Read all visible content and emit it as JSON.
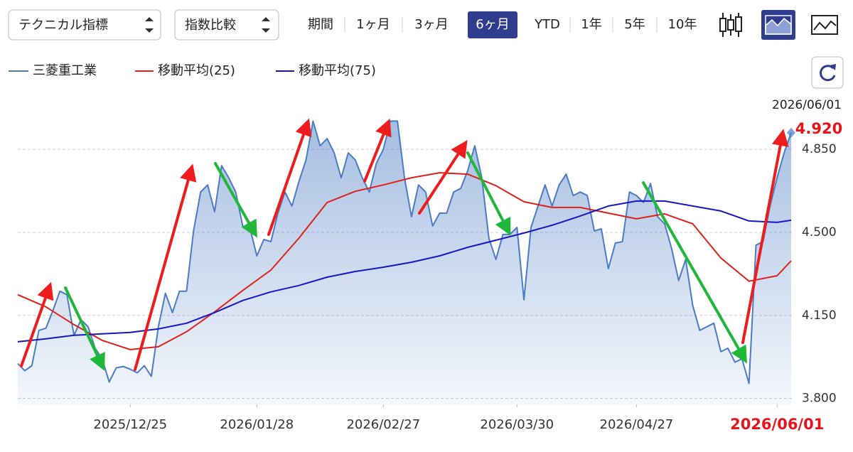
{
  "ui": {
    "indicator_select": "テクニカル指標",
    "compare_select": "指数比較",
    "period_label": "期間",
    "periods": [
      "1ヶ月",
      "3ヶ月",
      "6ヶ月",
      "YTD",
      "1年",
      "5年",
      "10年"
    ]
  },
  "chart_data": {
    "type": "line",
    "xlim": [
      0,
      110
    ],
    "xticks": [
      {
        "value": 16,
        "label": "2025/12/25"
      },
      {
        "value": 34,
        "label": "2026/01/28"
      },
      {
        "value": 52,
        "label": "2026/02/27"
      },
      {
        "value": 71,
        "label": "2026/03/30"
      },
      {
        "value": 88,
        "label": "2026/04/27"
      },
      {
        "value": 108,
        "label": "2026/06/01"
      }
    ],
    "ylim": [
      3.775,
      5.0
    ],
    "yticks": [
      {
        "value": 3.8,
        "label": "3.800"
      },
      {
        "value": 4.15,
        "label": "4.150"
      },
      {
        "value": 4.5,
        "label": "4.500"
      },
      {
        "value": 4.85,
        "label": "4.850"
      }
    ],
    "grid": true,
    "series": [
      {
        "name": "三菱重工業",
        "color": "#4a7cc4",
        "area": true,
        "values": [
          3.947,
          3.917,
          3.938,
          4.087,
          4.096,
          4.171,
          4.252,
          4.237,
          4.066,
          4.132,
          4.102,
          4.012,
          3.967,
          3.869,
          3.929,
          3.935,
          3.923,
          3.908,
          3.938,
          3.893,
          4.102,
          4.243,
          4.162,
          4.252,
          4.252,
          4.506,
          4.67,
          4.7,
          4.587,
          4.781,
          4.73,
          4.67,
          4.527,
          4.521,
          4.401,
          4.47,
          4.461,
          4.581,
          4.67,
          4.611,
          4.715,
          4.805,
          4.969,
          4.865,
          4.895,
          4.835,
          4.73,
          4.835,
          4.805,
          4.73,
          4.67,
          4.79,
          4.85,
          4.969,
          4.969,
          4.73,
          4.566,
          4.7,
          4.67,
          4.527,
          4.581,
          4.581,
          4.67,
          4.685,
          4.76,
          4.865,
          4.73,
          4.476,
          4.386,
          4.491,
          4.491,
          4.521,
          4.216,
          4.521,
          4.611,
          4.7,
          4.611,
          4.7,
          4.745,
          4.655,
          4.67,
          4.655,
          4.506,
          4.515,
          4.347,
          4.455,
          4.461,
          4.67,
          4.655,
          4.626,
          4.706,
          4.566,
          4.536,
          4.431,
          4.297,
          4.386,
          4.192,
          4.087,
          4.102,
          4.117,
          3.997,
          4.012,
          3.953,
          3.967,
          3.863,
          4.446,
          4.461,
          4.611,
          4.73,
          4.835,
          4.92
        ]
      },
      {
        "name": "移動平均(25)",
        "color": "#e0201b",
        "x": [
          0,
          4,
          8,
          12,
          16,
          20,
          24,
          28,
          32,
          36,
          40,
          44,
          48,
          52,
          56,
          60,
          64,
          68,
          72,
          76,
          80,
          84,
          88,
          92,
          96,
          100,
          104,
          108,
          110
        ],
        "values": [
          4.237,
          4.186,
          4.111,
          4.045,
          4.006,
          4.018,
          4.081,
          4.165,
          4.255,
          4.341,
          4.476,
          4.626,
          4.673,
          4.7,
          4.73,
          4.751,
          4.745,
          4.697,
          4.629,
          4.605,
          4.605,
          4.581,
          4.557,
          4.578,
          4.536,
          4.392,
          4.294,
          4.317,
          4.38
        ]
      },
      {
        "name": "移動平均(75)",
        "color": "#1616c4",
        "x": [
          0,
          4,
          8,
          12,
          16,
          20,
          24,
          28,
          32,
          36,
          40,
          44,
          48,
          52,
          56,
          60,
          64,
          68,
          72,
          76,
          80,
          84,
          88,
          92,
          96,
          100,
          104,
          108,
          110
        ],
        "values": [
          4.039,
          4.051,
          4.066,
          4.072,
          4.078,
          4.093,
          4.117,
          4.162,
          4.213,
          4.249,
          4.276,
          4.311,
          4.335,
          4.353,
          4.374,
          4.401,
          4.437,
          4.467,
          4.497,
          4.53,
          4.569,
          4.611,
          4.632,
          4.632,
          4.611,
          4.59,
          4.548,
          4.542,
          4.551
        ]
      }
    ],
    "current": {
      "date": "2026/06/01",
      "value": 4.92,
      "label": "4.920"
    }
  }
}
